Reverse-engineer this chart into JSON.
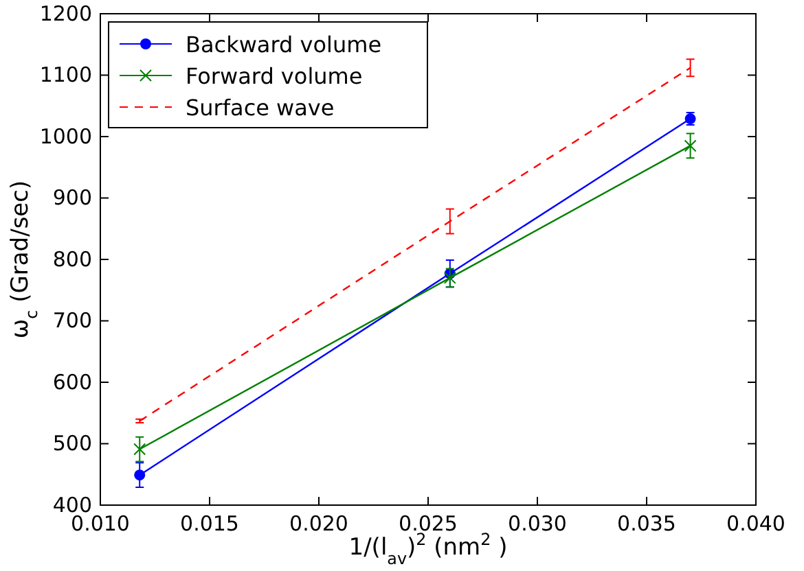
{
  "chart_data": {
    "type": "line",
    "xlabel": "1/(l$_{av}$)$^{2}$  (nm$^{2}$ )",
    "ylabel": "ω$_{c}$ (Grad/sec)",
    "xlim": [
      0.01,
      0.04
    ],
    "xticks": [
      {
        "value": 0.01,
        "label": "0.010"
      },
      {
        "value": 0.015,
        "label": "0.015"
      },
      {
        "value": 0.02,
        "label": "0.020"
      },
      {
        "value": 0.025,
        "label": "0.025"
      },
      {
        "value": 0.03,
        "label": "0.030"
      },
      {
        "value": 0.035,
        "label": "0.035"
      },
      {
        "value": 0.04,
        "label": "0.040"
      }
    ],
    "ylim": [
      400,
      1200
    ],
    "yticks": [
      400,
      500,
      600,
      700,
      800,
      900,
      1000,
      1100,
      1200
    ],
    "x": [
      0.0118,
      0.026,
      0.037
    ],
    "legend": "top left",
    "grid": false,
    "series": [
      {
        "name": "Backward volume",
        "color": "#0000ff",
        "values": [
          449,
          777,
          1029
        ],
        "errors": [
          20,
          22,
          10
        ],
        "marker": "circle",
        "line_style": "solid"
      },
      {
        "name": "Forward volume",
        "color": "#008000",
        "values": [
          491,
          770,
          985
        ],
        "errors": [
          20,
          15,
          20
        ],
        "marker": "cross",
        "line_style": "solid"
      },
      {
        "name": "Surface wave",
        "color": "#ff0000",
        "values": [
          537,
          862,
          1112
        ],
        "errors": [
          3,
          20,
          14
        ],
        "marker": "none",
        "line_style": "dashed"
      }
    ]
  }
}
